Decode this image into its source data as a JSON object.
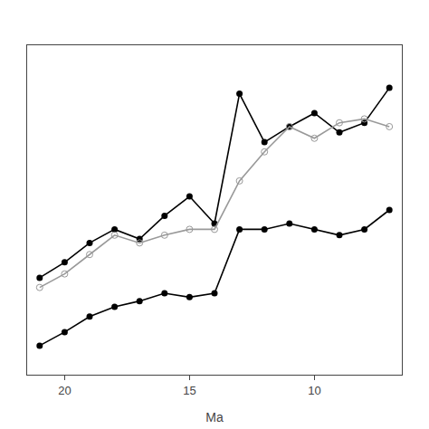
{
  "chart_data": {
    "type": "line",
    "xlabel": "Ma",
    "x": [
      21,
      20,
      19,
      18,
      17,
      16,
      15,
      14,
      13,
      12,
      11,
      10,
      9,
      8,
      7
    ],
    "series": [
      {
        "color": "#000000",
        "marker": "circle",
        "values": [
          5.0,
          5.8,
          6.8,
          7.5,
          7.0,
          8.2,
          9.2,
          7.8,
          14.5,
          12.0,
          12.8,
          13.5,
          12.5,
          13.0,
          14.8
        ]
      },
      {
        "color": "#999999",
        "marker": "circle-open",
        "values": [
          4.5,
          5.2,
          6.2,
          7.2,
          6.8,
          7.2,
          7.5,
          7.5,
          10.0,
          11.5,
          12.8,
          12.2,
          13.0,
          13.2,
          12.8
        ]
      },
      {
        "color": "#000000",
        "marker": "circle",
        "values": [
          1.5,
          2.2,
          3.0,
          3.5,
          3.8,
          4.2,
          4.0,
          4.2,
          7.5,
          7.5,
          7.8,
          7.5,
          7.2,
          7.5,
          8.5
        ]
      }
    ],
    "xlim": [
      21.5,
      6.5
    ],
    "xticks": [
      20,
      15,
      10
    ],
    "ylim": [
      0,
      17
    ],
    "tick_labels": "x",
    "grid": false
  }
}
